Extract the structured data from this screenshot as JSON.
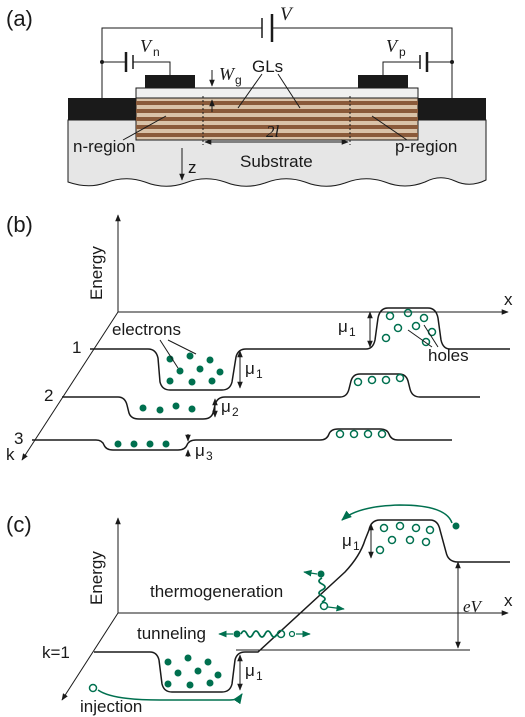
{
  "panels": {
    "a": {
      "tag": "(a)",
      "V": "V",
      "Vn": "V",
      "Vn_sub": "n",
      "Vp": "V",
      "Vp_sub": "p",
      "Wg": "W",
      "Wg_sub": "g",
      "GLs": "GLs",
      "twol": "2l",
      "n_region": "n-region",
      "p_region": "p-region",
      "z": "z",
      "substrate": "Substrate"
    },
    "b": {
      "tag": "(b)",
      "energy": "Energy",
      "x": "x",
      "k": "k",
      "layer1": "1",
      "layer2": "2",
      "layer3": "3",
      "electrons": "electrons",
      "holes": "holes",
      "mu": "μ",
      "mu1_sub": "1",
      "mu2_sub": "2",
      "mu3_sub": "3"
    },
    "c": {
      "tag": "(c)",
      "energy": "Energy",
      "x": "x",
      "k1": "k=1",
      "mu": "μ",
      "mu1_sub": "1",
      "thermogeneration": "thermogeneration",
      "tunneling": "tunneling",
      "injection": "injection",
      "eV": "eV"
    }
  },
  "colors": {
    "line": "#1a1a1a",
    "carrier": "#00704f",
    "contact": "#1a1a1a",
    "gate_strip": "#c8a27a",
    "gate_dark": "#6b4a32",
    "substrate": "#e6e6e6"
  }
}
